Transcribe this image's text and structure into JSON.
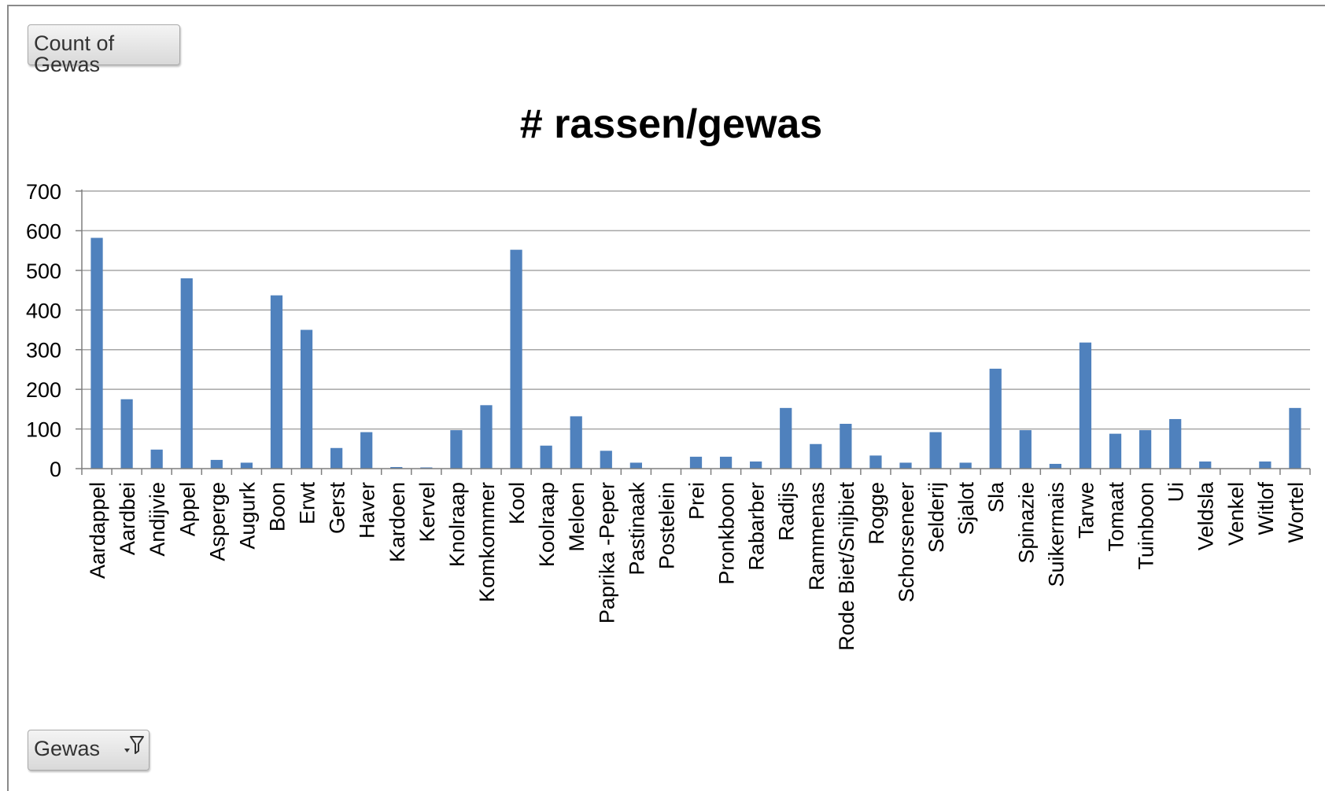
{
  "buttons": {
    "values_field": "Count of Gewas",
    "axis_field": "Gewas"
  },
  "icons": {
    "filter": "filter-icon"
  },
  "colors": {
    "bar": "#4f81bd",
    "grid": "#a6a6a6"
  },
  "chart_data": {
    "type": "bar",
    "title": "# rassen/gewas",
    "xlabel": "",
    "ylabel": "",
    "ylim": [
      0,
      700
    ],
    "yticks": [
      0,
      100,
      200,
      300,
      400,
      500,
      600,
      700
    ],
    "grid": true,
    "legend": "none",
    "categories": [
      "Aardappel",
      "Aardbei",
      "Andijvie",
      "Appel",
      "Asperge",
      "Augurk",
      "Boon",
      "Erwt",
      "Gerst",
      "Haver",
      "Kardoen",
      "Kervel",
      "Knolraap",
      "Komkommer",
      "Kool",
      "Koolraap",
      "Meloen",
      "Paprika -Peper",
      "Pastinaak",
      "Postelein",
      "Prei",
      "Pronkboon",
      "Rabarber",
      "Radijs",
      "Rammenas",
      "Rode Biet/Snijbiet",
      "Rogge",
      "Schorseneer",
      "Selderij",
      "Sjalot",
      "Sla",
      "Spinazie",
      "Suikermais",
      "Tarwe",
      "Tomaat",
      "Tuinboon",
      "Ui",
      "Veldsla",
      "Venkel",
      "Witlof",
      "Wortel"
    ],
    "values": [
      582,
      175,
      48,
      480,
      22,
      15,
      437,
      350,
      52,
      92,
      4,
      3,
      97,
      160,
      552,
      58,
      132,
      45,
      15,
      1,
      30,
      30,
      18,
      153,
      62,
      113,
      33,
      15,
      92,
      15,
      252,
      97,
      12,
      318,
      88,
      97,
      125,
      18,
      1,
      18,
      153
    ]
  }
}
